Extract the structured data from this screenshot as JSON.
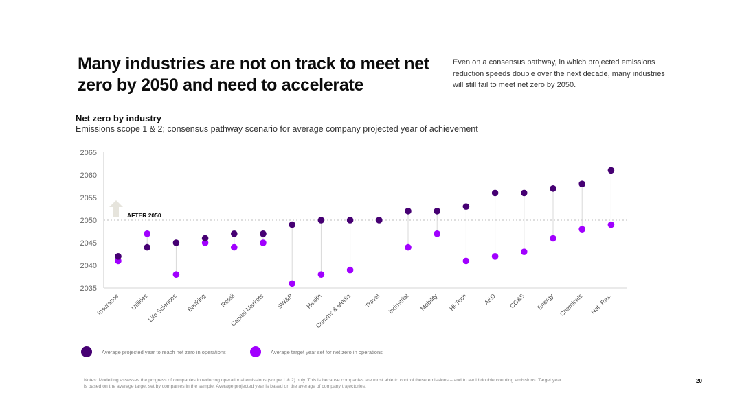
{
  "header": {
    "title": "Many industries are not on track to meet net zero by 2050 and need to accelerate",
    "intro": "Even on a consensus pathway, in which projected emissions reduction speeds double over the next decade, many industries will still fail to meet net zero by 2050."
  },
  "chart_data": {
    "type": "scatter",
    "title": "Net zero by industry",
    "subtitle": "Emissions scope 1 & 2; consensus pathway scenario for average company projected year of achievement",
    "categories": [
      "Insurance",
      "Utilities",
      "Life Sciences",
      "Banking",
      "Retail",
      "Capital Markets",
      "SW&P",
      "Health",
      "Comms & Media",
      "Travel",
      "Industrial",
      "Mobility",
      "Hi-Tech",
      "A&D",
      "CG&S",
      "Energy",
      "Chemicals",
      "Nat. Res."
    ],
    "series": [
      {
        "name": "Average projected year to reach net zero in operations",
        "color": "#460073",
        "values": [
          2042,
          2044,
          2045,
          2046,
          2047,
          2047,
          2049,
          2050,
          2050,
          2050,
          2052,
          2052,
          2053,
          2056,
          2056,
          2057,
          2058,
          2061
        ]
      },
      {
        "name": "Average target year set for net zero in operations",
        "color": "#a100ff",
        "values": [
          2041,
          2047,
          2038,
          2045,
          2044,
          2045,
          2036,
          2038,
          2039,
          null,
          2044,
          2047,
          2041,
          2042,
          2043,
          2046,
          2048,
          2049
        ]
      }
    ],
    "ylim": [
      2035,
      2065
    ],
    "yticks": [
      2035,
      2040,
      2045,
      2050,
      2055,
      2060,
      2065
    ],
    "reference_line": {
      "value": 2050,
      "label": "AFTER 2050"
    },
    "legend_position": "bottom-left"
  },
  "footer": {
    "notes": "Notes: Modelling assesses the progress of companies in reducing operational emissions (scope 1 & 2) only. This is because companies are most able to control these emissions – and to avoid double counting emissions. Target year is based on the average target set by companies in the sample. Average projected year is based on the average of company trajectories.",
    "page_number": "20"
  }
}
